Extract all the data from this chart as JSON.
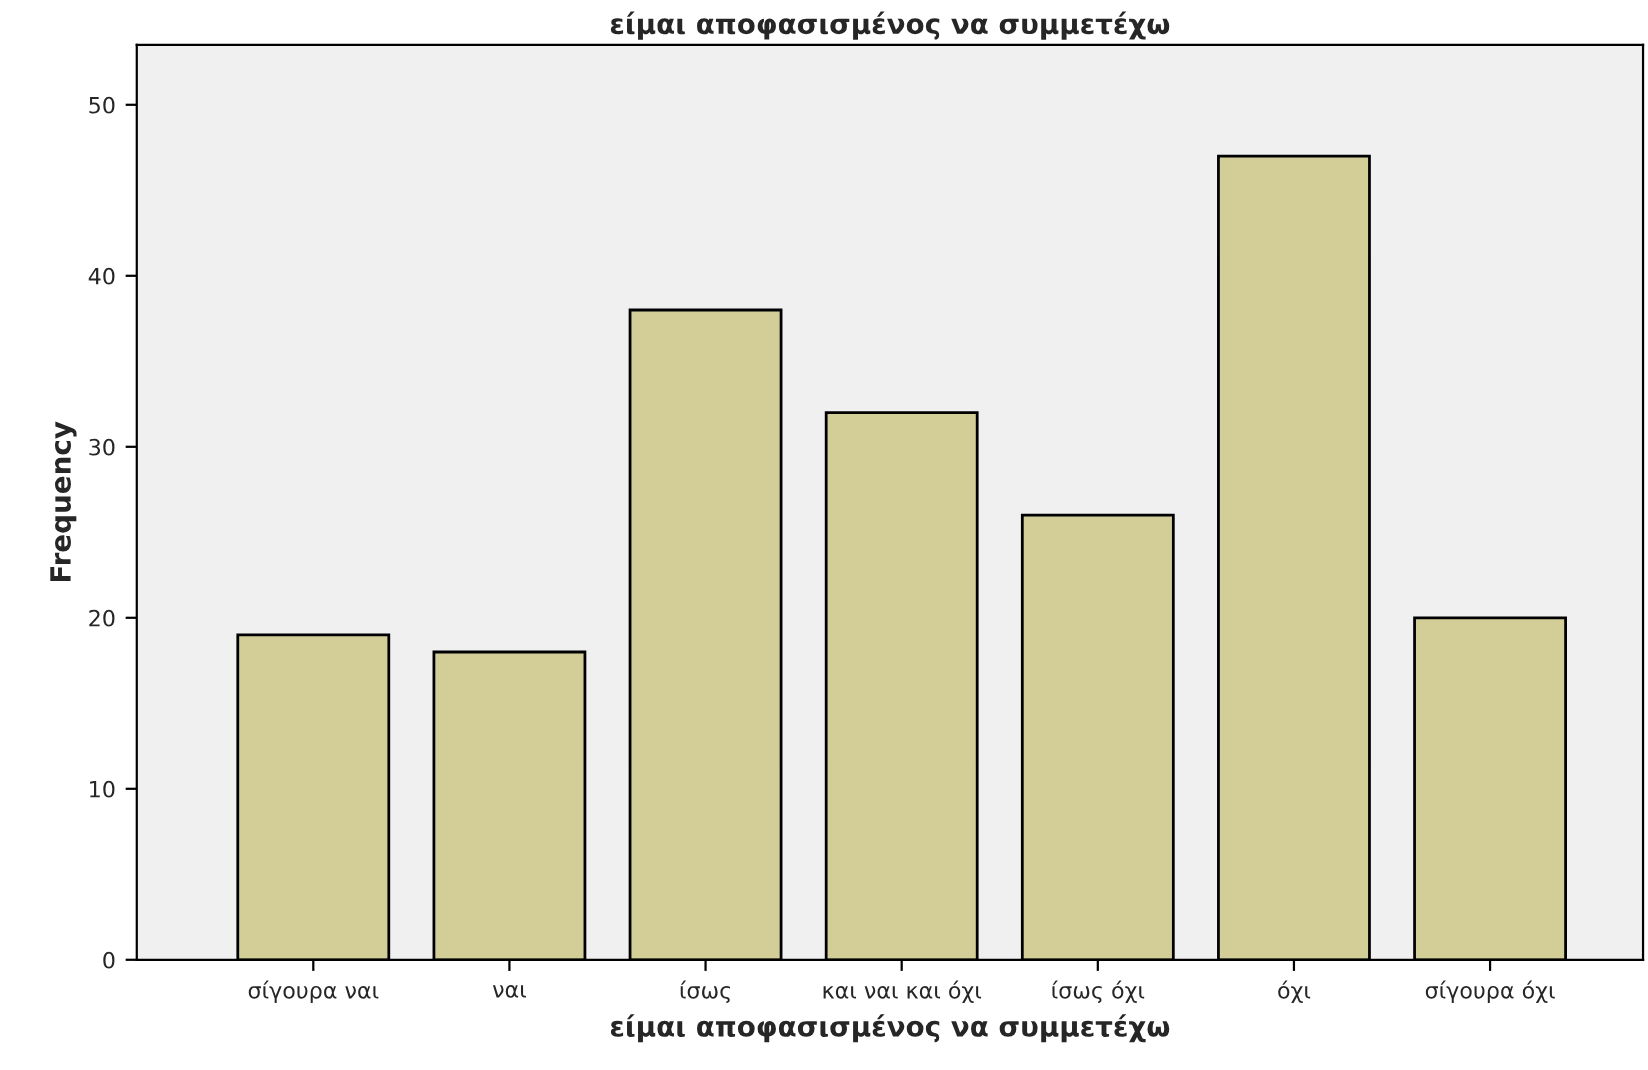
{
  "chart_data": {
    "type": "bar",
    "title": "είμαι αποφασισμένος να συμμετέχω",
    "xlabel": "είμαι αποφασισμένος να συμμετέχω",
    "ylabel": "Frequency",
    "categories": [
      "σίγουρα ναι",
      "ναι",
      "ίσως",
      "και ναι και όχι",
      "ίσως όχι",
      "όχι",
      "σίγουρα όχι"
    ],
    "values": [
      19,
      18,
      38,
      32,
      26,
      47,
      20
    ],
    "color": "#d3ce97",
    "ylim": [
      0,
      53.5
    ],
    "yticks": [
      0,
      10,
      20,
      30,
      40,
      50
    ],
    "grid": false
  }
}
